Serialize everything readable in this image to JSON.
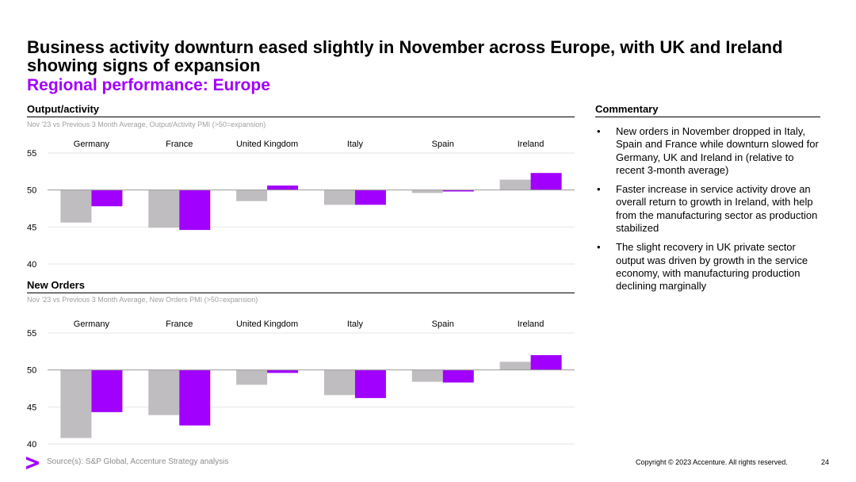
{
  "title": "Business activity downturn eased slightly in November across Europe, with UK and Ireland showing signs of expansion",
  "subtitle": "Regional performance: Europe",
  "commentary": {
    "heading": "Commentary",
    "bullet_symbol": "•",
    "items": [
      "New orders in November dropped in Italy, Spain and France while downturn slowed for Germany, UK and Ireland in (relative to recent 3-month average)",
      "Faster increase in service activity drove an overall return to growth in Ireland, with help from the manufacturing sector as production stabilized",
      "The slight recovery in UK private sector output was driven by growth in the service economy, with manufacturing production declining marginally"
    ]
  },
  "footer": {
    "source": "Source(s): S&P Global, Accenture Strategy analysis",
    "copyright": "Copyright © 2023 Accenture. All rights reserved.",
    "page": "24",
    "logo_icon": "accenture-chevron-icon"
  },
  "colors": {
    "accent": "#a100ff",
    "grey_bar": "#c0bdc0",
    "purple_bar": "#a100ff",
    "grid": "#e6e6e6",
    "baseline": "#999999"
  },
  "chart_data": [
    {
      "type": "bar",
      "heading": "Output/activity",
      "title": "Nov '23 vs Previous 3 Month Average, Output/Activity PMI (>50=expansion)",
      "categories": [
        "Germany",
        "France",
        "United Kingdom",
        "Italy",
        "Spain",
        "Ireland"
      ],
      "series": [
        {
          "name": "Previous 3 Month Average",
          "color": "#c0bdc0",
          "values": [
            45.6,
            44.9,
            48.5,
            48.0,
            49.6,
            51.4
          ]
        },
        {
          "name": "Nov '23",
          "color": "#a100ff",
          "values": [
            47.8,
            44.6,
            50.6,
            48.0,
            49.8,
            52.3
          ]
        }
      ],
      "baseline": 50,
      "ylim": [
        40,
        55
      ],
      "yticks": [
        55,
        50,
        45,
        40
      ],
      "grid": true
    },
    {
      "type": "bar",
      "heading": "New Orders",
      "title": "Nov '23 vs Previous 3 Month Average, New Orders PMI (>50=expansion)",
      "categories": [
        "Germany",
        "France",
        "United Kingdom",
        "Italy",
        "Spain",
        "Ireland"
      ],
      "series": [
        {
          "name": "Previous 3 Month Average",
          "color": "#c0bdc0",
          "values": [
            40.8,
            43.9,
            48.0,
            46.6,
            48.4,
            51.1
          ]
        },
        {
          "name": "Nov '23",
          "color": "#a100ff",
          "values": [
            44.3,
            42.5,
            49.6,
            46.2,
            48.3,
            52.0
          ]
        }
      ],
      "baseline": 50,
      "ylim": [
        40,
        55
      ],
      "yticks": [
        55,
        50,
        45,
        40
      ],
      "grid": true
    }
  ]
}
